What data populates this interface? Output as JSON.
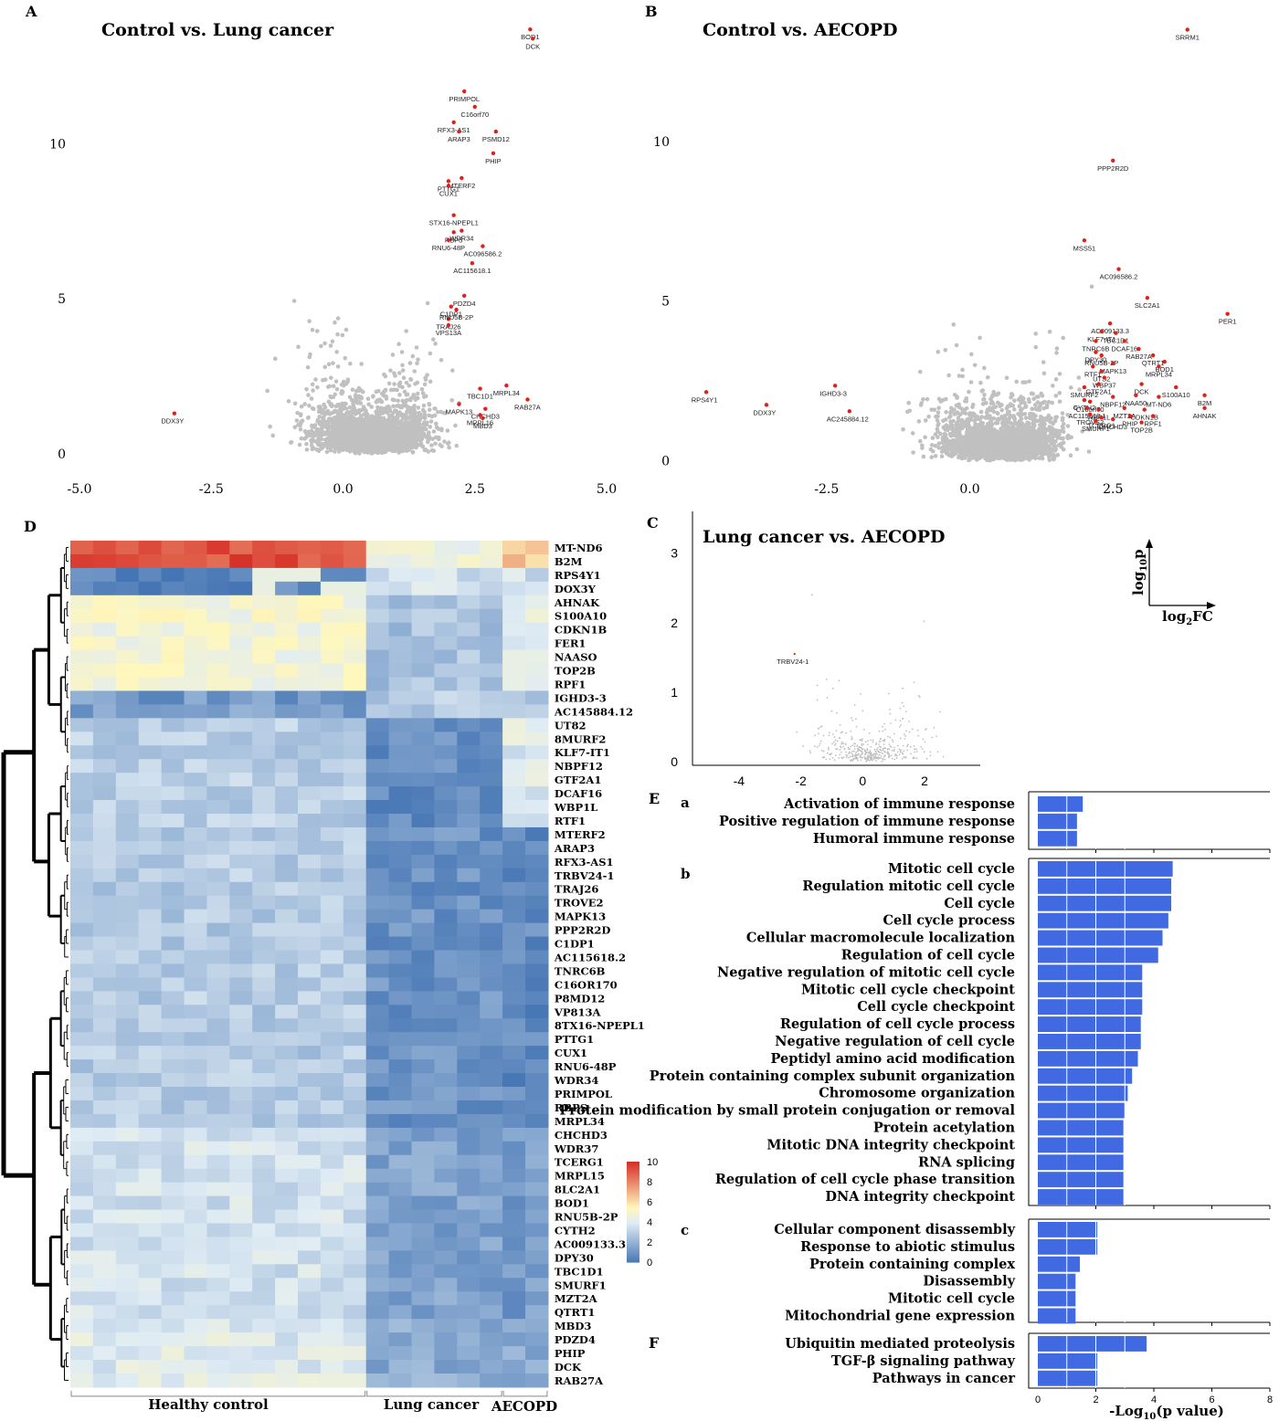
{
  "chart_data": [
    {
      "panel": "A",
      "type": "scatter",
      "title": "Control vs. Lung cancer",
      "xlim": [
        -5.0,
        5.0
      ],
      "xticks": [
        "-5.0",
        "-2.5",
        "0.0",
        "2.5",
        "5.0"
      ],
      "ylim": [
        -0.3,
        14
      ],
      "yticks": [
        "0",
        "5",
        "10"
      ],
      "highlighted": [
        {
          "label": "BOD1",
          "x": 3.55,
          "y": 13.7
        },
        {
          "label": "DCK",
          "x": 3.6,
          "y": 13.4
        },
        {
          "label": "PRIMPOL",
          "x": 2.3,
          "y": 11.7
        },
        {
          "label": "C16orf70",
          "x": 2.5,
          "y": 11.2
        },
        {
          "label": "RFX3-AS1",
          "x": 2.1,
          "y": 10.7
        },
        {
          "label": "PSMD12",
          "x": 2.9,
          "y": 10.4
        },
        {
          "label": "ARAP3",
          "x": 2.2,
          "y": 10.4
        },
        {
          "label": "PHIP",
          "x": 2.85,
          "y": 9.7
        },
        {
          "label": "MTERF2",
          "x": 2.25,
          "y": 8.9
        },
        {
          "label": "PTTG1",
          "x": 2.0,
          "y": 8.8
        },
        {
          "label": "CUX1",
          "x": 2.0,
          "y": 8.65
        },
        {
          "label": "STX16-NPEPL1",
          "x": 2.1,
          "y": 7.7
        },
        {
          "label": "WDR34",
          "x": 2.25,
          "y": 7.2
        },
        {
          "label": "RBP5",
          "x": 2.1,
          "y": 7.15
        },
        {
          "label": "RNU6-48P",
          "x": 2.0,
          "y": 6.9
        },
        {
          "label": "AC096586.2",
          "x": 2.65,
          "y": 6.7
        },
        {
          "label": "AC115618.1",
          "x": 2.45,
          "y": 6.15
        },
        {
          "label": "PDZD4",
          "x": 2.3,
          "y": 5.1
        },
        {
          "label": "C1DP1",
          "x": 2.05,
          "y": 4.75
        },
        {
          "label": "TRAJ26",
          "x": 2.0,
          "y": 4.35
        },
        {
          "label": "RNU5B-2P",
          "x": 2.15,
          "y": 4.65
        },
        {
          "label": "VPS13A",
          "x": 2.0,
          "y": 4.15
        },
        {
          "label": "TBC1D1",
          "x": 2.6,
          "y": 2.1
        },
        {
          "label": "MRPL34",
          "x": 3.1,
          "y": 2.2
        },
        {
          "label": "RAB27A",
          "x": 3.5,
          "y": 1.75
        },
        {
          "label": "MAPK13",
          "x": 2.2,
          "y": 1.6
        },
        {
          "label": "CHCHD3",
          "x": 2.7,
          "y": 1.45
        },
        {
          "label": "MRPL16",
          "x": 2.6,
          "y": 1.25
        },
        {
          "label": "MBD3",
          "x": 2.65,
          "y": 1.15
        },
        {
          "label": "DDX3Y",
          "x": -3.2,
          "y": 1.3
        }
      ]
    },
    {
      "panel": "B",
      "type": "scatter",
      "title": "Control vs. AECOPD",
      "xlim": [
        -5.0,
        5.0
      ],
      "xticks": [
        "-2.5",
        "0.0",
        "2.5"
      ],
      "ylim": [
        -0.3,
        13.8
      ],
      "yticks": [
        "0",
        "5",
        "10"
      ],
      "highlighted": [
        {
          "label": "SRRM1",
          "x": 3.8,
          "y": 13.5
        },
        {
          "label": "PPP2R2D",
          "x": 2.5,
          "y": 9.4
        },
        {
          "label": "MSS51",
          "x": 2.0,
          "y": 6.9
        },
        {
          "label": "AC096586.2",
          "x": 2.6,
          "y": 6.0
        },
        {
          "label": "SLC2A1",
          "x": 3.1,
          "y": 5.1
        },
        {
          "label": "PER1",
          "x": 4.5,
          "y": 4.6
        },
        {
          "label": "AC009133.3",
          "x": 2.45,
          "y": 4.3
        },
        {
          "label": "KLF7-IT1",
          "x": 2.3,
          "y": 4.05
        },
        {
          "label": "TBC1D1",
          "x": 2.55,
          "y": 4.0
        },
        {
          "label": "TNRC6B",
          "x": 2.2,
          "y": 3.75
        },
        {
          "label": "DCAF16",
          "x": 2.7,
          "y": 3.75
        },
        {
          "label": "RAB27A",
          "x": 2.95,
          "y": 3.5
        },
        {
          "label": "DPY30",
          "x": 2.2,
          "y": 3.4
        },
        {
          "label": "RNU5B-2P",
          "x": 2.3,
          "y": 3.3
        },
        {
          "label": "QTRT1",
          "x": 3.2,
          "y": 3.3
        },
        {
          "label": "BOD1",
          "x": 3.4,
          "y": 3.1
        },
        {
          "label": "MAPK13",
          "x": 2.5,
          "y": 3.05
        },
        {
          "label": "RTF1",
          "x": 2.15,
          "y": 2.95
        },
        {
          "label": "UTS2",
          "x": 2.3,
          "y": 2.8
        },
        {
          "label": "MRPL34",
          "x": 3.3,
          "y": 2.95
        },
        {
          "label": "WBP37",
          "x": 2.35,
          "y": 2.6
        },
        {
          "label": "GTF2A1",
          "x": 2.25,
          "y": 2.4
        },
        {
          "label": "DCK",
          "x": 3.0,
          "y": 2.4
        },
        {
          "label": "SMURF2",
          "x": 2.0,
          "y": 2.3
        },
        {
          "label": "S100A10",
          "x": 3.6,
          "y": 2.3
        },
        {
          "label": "NAA50",
          "x": 2.9,
          "y": 2.05
        },
        {
          "label": "NBPF12",
          "x": 2.5,
          "y": 2.0
        },
        {
          "label": "MT-ND6",
          "x": 3.3,
          "y": 2.0
        },
        {
          "label": "CYTH2",
          "x": 2.0,
          "y": 1.9
        },
        {
          "label": "C16orf70",
          "x": 2.1,
          "y": 1.85
        },
        {
          "label": "B2M",
          "x": 4.1,
          "y": 2.05
        },
        {
          "label": "AC115618.1",
          "x": 2.05,
          "y": 1.65
        },
        {
          "label": "WBP1L",
          "x": 2.25,
          "y": 1.6
        },
        {
          "label": "MZT2A",
          "x": 2.7,
          "y": 1.65
        },
        {
          "label": "CDKN1B",
          "x": 3.05,
          "y": 1.6
        },
        {
          "label": "AHNAK",
          "x": 4.1,
          "y": 1.65
        },
        {
          "label": "TROVE2",
          "x": 2.1,
          "y": 1.45
        },
        {
          "label": "TCERG1",
          "x": 2.3,
          "y": 1.35
        },
        {
          "label": "PHIP",
          "x": 2.8,
          "y": 1.4
        },
        {
          "label": "RPF1",
          "x": 3.2,
          "y": 1.4
        },
        {
          "label": "SMURF1",
          "x": 2.2,
          "y": 1.25
        },
        {
          "label": "CHCHD3",
          "x": 2.5,
          "y": 1.3
        },
        {
          "label": "TOP2B",
          "x": 3.0,
          "y": 1.2
        },
        {
          "label": "RPS4Y1",
          "x": -4.6,
          "y": 2.15
        },
        {
          "label": "DDX3Y",
          "x": -3.55,
          "y": 1.75
        },
        {
          "label": "IGHD3-3",
          "x": -2.35,
          "y": 2.35
        },
        {
          "label": "AC245884.12",
          "x": -2.1,
          "y": 1.55
        }
      ]
    },
    {
      "panel": "C",
      "type": "scatter",
      "title": "Lung cancer vs. AECOPD",
      "xlim": [
        -5.5,
        3.8
      ],
      "xticks": [
        "-4",
        "-2",
        "0",
        "2"
      ],
      "ylim": [
        -0.05,
        3.6
      ],
      "yticks": [
        "0",
        "1",
        "2",
        "3"
      ],
      "highlighted": [
        {
          "label": "TRBV24-1",
          "x": -2.2,
          "y": 1.55
        }
      ],
      "axis_legend": {
        "y": "log",
        "y_sub": "10",
        "y_tail": "p",
        "x": "log",
        "x_sub": "2",
        "x_tail": "FC"
      }
    },
    {
      "panel": "D",
      "type": "heatmap",
      "genes": [
        "MT-ND6",
        "B2M",
        "RPS4Y1",
        "DOX3Y",
        "AHNAK",
        "S100A10",
        "CDKN1B",
        "FER1",
        "NAASO",
        "TOP2B",
        "RPF1",
        "IGHD3-3",
        "AC145884.12",
        "UT82",
        "8MURF2",
        "KLF7-IT1",
        "NBPF12",
        "GTF2A1",
        "DCAF16",
        "WBP1L",
        "RTF1",
        "MTERF2",
        "ARAP3",
        "RFX3-AS1",
        "TRBV24-1",
        "TRAJ26",
        "TROVE2",
        "MAPK13",
        "PPP2R2D",
        "C1DP1",
        "AC115618.2",
        "TNRC6B",
        "C16OR170",
        "P8MD12",
        "VP813A",
        "8TX16-NPEPL1",
        "PTTG1",
        "CUX1",
        "RNU6-48P",
        "WDR34",
        "PRIMPOL",
        "RBPS",
        "MRPL34",
        "CHCHD3",
        "WDR37",
        "TCERG1",
        "MRPL15",
        "8LC2A1",
        "BOD1",
        "RNU5B-2P",
        "CYTH2",
        "AC009133.3",
        "DPY30",
        "TBC1D1",
        "SMURF1",
        "MZT2A",
        "QTRT1",
        "MBD3",
        "PDZD4",
        "PHIP",
        "DCK",
        "RAB27A"
      ],
      "groups": [
        {
          "name": "Healthy control",
          "n": 13
        },
        {
          "name": "Lung cancer",
          "n": 6
        },
        {
          "name": "AECOPD",
          "n": 2
        }
      ],
      "colorbar": {
        "ticks": [
          "10",
          "8",
          "6",
          "4",
          "2",
          "0"
        ],
        "min": 0,
        "max": 10
      },
      "colors": {
        "low": "#4575b4",
        "mid": "#fff7bc",
        "high": "#d73027"
      }
    },
    {
      "panel": "E",
      "type": "bar",
      "orientation": "horizontal",
      "xlabel": "-Log",
      "xlabel_sub": "10",
      "xlabel_tail": "(p value)",
      "xticks": [
        "0",
        "2",
        "4",
        "6",
        "8"
      ],
      "xlim": [
        0,
        8
      ],
      "bar_color": "#4169e1",
      "groups": [
        {
          "key": "a",
          "terms": [
            {
              "label": "Activation of immune response",
              "value": 1.55
            },
            {
              "label": "Positive regulation of immune response",
              "value": 1.35
            },
            {
              "label": "Humoral immune response",
              "value": 1.35
            }
          ]
        },
        {
          "key": "b",
          "terms": [
            {
              "label": "Mitotic cell cycle",
              "value": 4.65
            },
            {
              "label": "Regulation mitotic cell cycle",
              "value": 4.6
            },
            {
              "label": "Cell cycle",
              "value": 4.6
            },
            {
              "label": "Cell cycle process",
              "value": 4.5
            },
            {
              "label": "Cellular macromolecule localization",
              "value": 4.3
            },
            {
              "label": "Regulation of cell cycle",
              "value": 4.15
            },
            {
              "label": "Negative regulation of mitotic cell cycle",
              "value": 3.6
            },
            {
              "label": "Mitotic cell cycle checkpoint",
              "value": 3.6
            },
            {
              "label": "Cell cycle checkpoint",
              "value": 3.6
            },
            {
              "label": "Regulation of cell cycle process",
              "value": 3.55
            },
            {
              "label": "Negative regulation of cell cycle",
              "value": 3.55
            },
            {
              "label": "Peptidyl amino acid modification",
              "value": 3.45
            },
            {
              "label": "Protein containing complex subunit organization",
              "value": 3.25
            },
            {
              "label": "Chromosome organization",
              "value": 3.1
            },
            {
              "label": "Protein modification by small protein conjugation or removal",
              "value": 3.0
            },
            {
              "label": "Protein acetylation",
              "value": 2.95
            },
            {
              "label": "Mitotic DNA integrity checkpoint",
              "value": 2.95
            },
            {
              "label": "RNA splicing",
              "value": 2.95
            },
            {
              "label": "Regulation of cell cycle phase transition",
              "value": 2.95
            },
            {
              "label": "DNA integrity checkpoint",
              "value": 2.95
            }
          ]
        },
        {
          "key": "c",
          "terms": [
            {
              "label": "Cellular component disassembly",
              "value": 2.05
            },
            {
              "label": "Response to abiotic stimulus",
              "value": 2.05
            },
            {
              "label": "Protein containing complex",
              "value": 1.45
            },
            {
              "label": "Disassembly",
              "value": 1.3
            },
            {
              "label": "Mitotic cell cycle",
              "value": 1.3
            },
            {
              "label": "Mitochondrial gene expression",
              "value": 1.3
            }
          ]
        }
      ]
    },
    {
      "panel": "F",
      "type": "bar",
      "orientation": "horizontal",
      "xlim": [
        0,
        8
      ],
      "bar_color": "#4169e1",
      "terms": [
        {
          "label": "Ubiquitin mediated proteolysis",
          "value": 3.75
        },
        {
          "label": "TGF-β signaling pathway",
          "value": 2.05
        },
        {
          "label": "Pathways in cancer",
          "value": 2.05
        }
      ]
    }
  ],
  "panel_letters": {
    "A": "A",
    "B": "B",
    "C": "C",
    "D": "D",
    "E": "E",
    "F": "F"
  },
  "colors": {
    "point": "#c0c0c0",
    "highlight": "#e0201b",
    "bar": "#4169e1"
  }
}
